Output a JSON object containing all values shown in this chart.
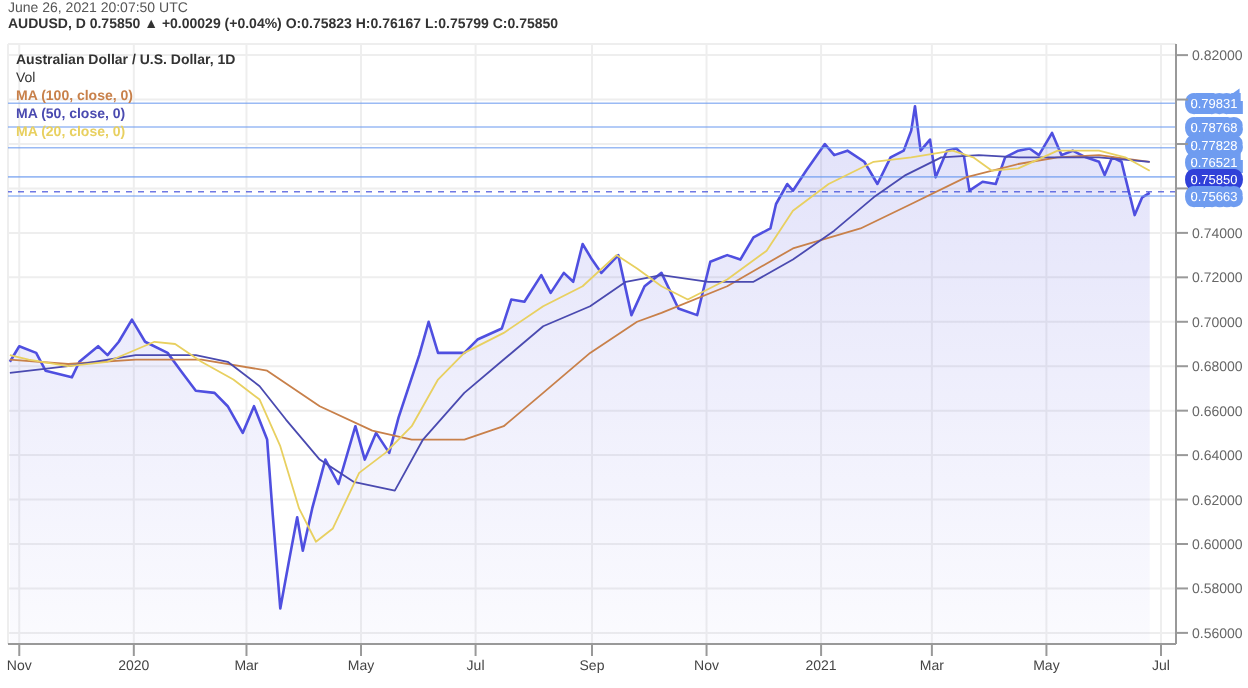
{
  "chart_data": {
    "type": "area",
    "title": "Australian Dollar / U.S. Dollar, 1D",
    "annotations": [
      "June 26, 2021 20:07:50 UTC",
      "AUDUSD, D 0.75850 ▲ +0.00029 (+0.04%) O:0.75823 H:0.76167 L:0.75799 C:0.75850",
      "Vol"
    ],
    "series": [
      {
        "color": "#4f4fe0",
        "x": [
          "2019-10-27",
          "2019-11-01",
          "2019-11-10",
          "2019-11-15",
          "2019-11-29",
          "2019-12-03",
          "2019-12-13",
          "2019-12-18",
          "2019-12-24",
          "2019-12-31",
          "2020-01-07",
          "2020-01-19",
          "2020-01-26",
          "2020-02-03",
          "2020-02-13",
          "2020-02-20",
          "2020-02-28",
          "2020-03-05",
          "2020-03-12",
          "2020-03-15",
          "2020-03-19",
          "2020-03-24",
          "2020-03-28",
          "2020-03-31",
          "2020-04-05",
          "2020-04-12",
          "2020-04-19",
          "2020-04-28",
          "2020-05-03",
          "2020-05-09",
          "2020-05-16",
          "2020-05-21",
          "2020-06-01",
          "2020-06-06",
          "2020-06-11",
          "2020-06-25",
          "2020-07-02",
          "2020-07-15",
          "2020-07-20",
          "2020-07-27",
          "2020-08-05",
          "2020-08-10",
          "2020-08-17",
          "2020-08-22",
          "2020-08-27",
          "2020-09-01",
          "2020-09-06",
          "2020-09-15",
          "2020-09-22",
          "2020-09-29",
          "2020-10-08",
          "2020-10-17",
          "2020-10-27",
          "2020-11-03",
          "2020-11-12",
          "2020-11-19",
          "2020-11-26",
          "2020-12-05",
          "2020-12-08",
          "2020-12-14",
          "2020-12-17",
          "2020-12-24",
          "2021-01-03",
          "2021-01-08",
          "2021-01-15",
          "2021-01-24",
          "2021-01-31",
          "2021-02-07",
          "2021-02-14",
          "2021-02-18",
          "2021-02-20",
          "2021-02-23",
          "2021-02-28",
          "2021-03-03",
          "2021-03-09",
          "2021-03-14",
          "2021-03-18",
          "2021-03-21",
          "2021-03-28",
          "2021-04-04",
          "2021-04-09",
          "2021-04-16",
          "2021-04-22",
          "2021-04-27",
          "2021-05-04",
          "2021-05-09",
          "2021-05-15",
          "2021-05-22",
          "2021-05-29",
          "2021-06-01",
          "2021-06-05",
          "2021-06-10",
          "2021-06-12",
          "2021-06-17",
          "2021-06-21",
          "2021-06-25"
        ],
        "values": [
          0.682,
          0.689,
          0.686,
          0.678,
          0.675,
          0.682,
          0.689,
          0.685,
          0.691,
          0.701,
          0.691,
          0.686,
          0.678,
          0.669,
          0.668,
          0.662,
          0.65,
          0.662,
          0.647,
          0.613,
          0.571,
          0.594,
          0.612,
          0.597,
          0.616,
          0.638,
          0.627,
          0.653,
          0.638,
          0.65,
          0.641,
          0.657,
          0.685,
          0.7,
          0.686,
          0.686,
          0.692,
          0.697,
          0.71,
          0.709,
          0.721,
          0.713,
          0.722,
          0.718,
          0.735,
          0.728,
          0.722,
          0.73,
          0.703,
          0.716,
          0.722,
          0.706,
          0.703,
          0.727,
          0.73,
          0.728,
          0.738,
          0.742,
          0.753,
          0.762,
          0.759,
          0.768,
          0.78,
          0.775,
          0.777,
          0.772,
          0.762,
          0.774,
          0.777,
          0.786,
          0.797,
          0.777,
          0.782,
          0.765,
          0.777,
          0.778,
          0.775,
          0.759,
          0.763,
          0.762,
          0.774,
          0.777,
          0.778,
          0.775,
          0.785,
          0.775,
          0.777,
          0.774,
          0.772,
          0.766,
          0.774,
          0.772,
          0.765,
          0.748,
          0.756,
          0.758
        ]
      },
      {
        "type": "line",
        "name": "MA (100, close, 0)",
        "color": "#c8804a",
        "x": [
          "2019-10-27",
          "2019-11-27",
          "2020-01-02",
          "2020-02-06",
          "2020-03-12",
          "2020-04-09",
          "2020-05-07",
          "2020-05-28",
          "2020-06-25",
          "2020-07-16",
          "2020-08-06",
          "2020-08-31",
          "2020-09-25",
          "2020-10-08",
          "2020-11-12",
          "2020-12-17",
          "2021-01-22",
          "2021-02-18",
          "2021-03-19",
          "2021-04-16",
          "2021-05-07",
          "2021-05-29",
          "2021-06-25"
        ],
        "values": [
          0.683,
          0.681,
          0.683,
          0.683,
          0.678,
          0.662,
          0.651,
          0.647,
          0.647,
          0.653,
          0.668,
          0.686,
          0.7,
          0.704,
          0.716,
          0.733,
          0.742,
          0.753,
          0.765,
          0.771,
          0.774,
          0.775,
          0.772
        ]
      },
      {
        "type": "line",
        "name": "MA (50, close, 0)",
        "color": "#4a4ab0",
        "x": [
          "2019-10-27",
          "2019-11-27",
          "2020-01-02",
          "2020-02-03",
          "2020-02-20",
          "2020-03-08",
          "2020-03-22",
          "2020-04-09",
          "2020-04-27",
          "2020-05-19",
          "2020-06-03",
          "2020-06-25",
          "2020-07-16",
          "2020-08-06",
          "2020-08-31",
          "2020-09-19",
          "2020-10-08",
          "2020-11-02",
          "2020-11-26",
          "2020-12-17",
          "2021-01-08",
          "2021-01-29",
          "2021-02-15",
          "2021-03-06",
          "2021-03-26",
          "2021-04-16",
          "2021-05-07",
          "2021-05-29",
          "2021-06-25"
        ],
        "values": [
          0.677,
          0.68,
          0.685,
          0.685,
          0.682,
          0.671,
          0.656,
          0.638,
          0.628,
          0.624,
          0.647,
          0.668,
          0.683,
          0.698,
          0.707,
          0.718,
          0.721,
          0.718,
          0.718,
          0.728,
          0.741,
          0.756,
          0.766,
          0.774,
          0.775,
          0.774,
          0.774,
          0.774,
          0.772
        ]
      },
      {
        "type": "line",
        "name": "MA (20, close, 0)",
        "color": "#e8d060",
        "x": [
          "2019-10-27",
          "2019-11-06",
          "2019-11-27",
          "2019-12-18",
          "2020-01-12",
          "2020-01-23",
          "2020-02-06",
          "2020-02-23",
          "2020-03-08",
          "2020-03-19",
          "2020-03-29",
          "2020-04-07",
          "2020-04-16",
          "2020-04-30",
          "2020-05-14",
          "2020-05-28",
          "2020-06-11",
          "2020-06-25",
          "2020-07-16",
          "2020-08-06",
          "2020-08-27",
          "2020-09-14",
          "2020-09-25",
          "2020-10-08",
          "2020-10-22",
          "2020-11-12",
          "2020-12-03",
          "2020-12-17",
          "2021-01-05",
          "2021-01-29",
          "2021-02-18",
          "2021-03-12",
          "2021-03-23",
          "2021-04-02",
          "2021-04-16",
          "2021-05-07",
          "2021-05-29",
          "2021-06-12",
          "2021-06-25"
        ],
        "values": [
          0.685,
          0.683,
          0.68,
          0.682,
          0.691,
          0.69,
          0.682,
          0.674,
          0.665,
          0.644,
          0.616,
          0.601,
          0.607,
          0.632,
          0.641,
          0.653,
          0.674,
          0.686,
          0.695,
          0.707,
          0.716,
          0.73,
          0.724,
          0.716,
          0.71,
          0.719,
          0.732,
          0.75,
          0.762,
          0.772,
          0.774,
          0.777,
          0.774,
          0.768,
          0.769,
          0.777,
          0.777,
          0.774,
          0.768
        ]
      }
    ],
    "xlim": [
      "2019-10-26",
      "2021-07-09"
    ],
    "xticks": [
      {
        "value": "2019-11-01",
        "label": "Nov"
      },
      {
        "value": "2020-01-01",
        "label": "2020"
      },
      {
        "value": "2020-03-01",
        "label": "Mar"
      },
      {
        "value": "2020-05-01",
        "label": "May"
      },
      {
        "value": "2020-07-01",
        "label": "Jul"
      },
      {
        "value": "2020-09-01",
        "label": "Sep"
      },
      {
        "value": "2020-11-01",
        "label": "Nov"
      },
      {
        "value": "2021-01-01",
        "label": "2021"
      },
      {
        "value": "2021-03-01",
        "label": "Mar"
      },
      {
        "value": "2021-05-01",
        "label": "May"
      },
      {
        "value": "2021-07-01",
        "label": "Jul"
      }
    ],
    "ylim": [
      0.555,
      0.825
    ],
    "yticks": [
      {
        "value": 0.56,
        "label": "0.56000"
      },
      {
        "value": 0.58,
        "label": "0.58000"
      },
      {
        "value": 0.6,
        "label": "0.60000"
      },
      {
        "value": 0.62,
        "label": "0.62000"
      },
      {
        "value": 0.64,
        "label": "0.64000"
      },
      {
        "value": 0.66,
        "label": "0.66000"
      },
      {
        "value": 0.68,
        "label": "0.68000"
      },
      {
        "value": 0.7,
        "label": "0.70000"
      },
      {
        "value": 0.72,
        "label": "0.72000"
      },
      {
        "value": 0.74,
        "label": "0.74000"
      },
      {
        "value": 0.76,
        "label": null
      },
      {
        "value": 0.78,
        "label": null
      },
      {
        "value": 0.8,
        "label": null
      },
      {
        "value": 0.82,
        "label": "0.82000"
      }
    ],
    "ref_lines": [
      {
        "axis": "y",
        "value": 0.79831,
        "label": "0.79831",
        "color": "#6f9cf0"
      },
      {
        "axis": "y",
        "value": 0.78768,
        "label": "0.78768",
        "color": "#6f9cf0"
      },
      {
        "axis": "y",
        "value": 0.77828,
        "label": "0.77828",
        "color": "#6f9cf0"
      },
      {
        "axis": "y",
        "value": 0.76521,
        "label": "0.76521",
        "color": "#6f9cf0"
      },
      {
        "axis": "y",
        "value": 0.7585,
        "label": "0.75850",
        "color": "#3040d8",
        "line_style": "dashed"
      },
      {
        "axis": "y",
        "value": 0.75663,
        "label": "0.75663",
        "color": "#6f9cf0"
      }
    ],
    "grid": true,
    "legend": "top left"
  }
}
